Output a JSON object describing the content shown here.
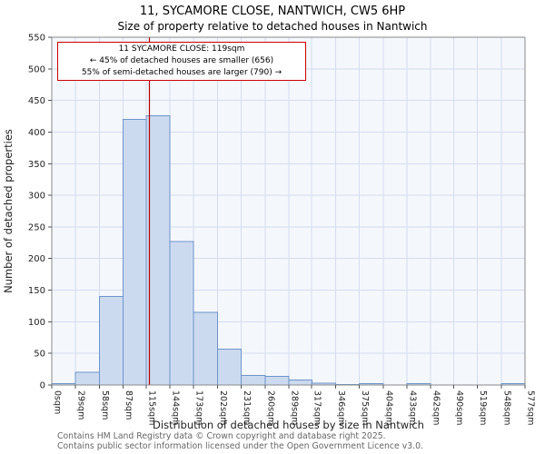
{
  "chart_data": {
    "type": "bar",
    "title": "11, SYCAMORE CLOSE, NANTWICH, CW5 6HP",
    "subtitle": "Size of property relative to detached houses in Nantwich",
    "xlabel": "Distribution of detached houses by size in Nantwich",
    "ylabel": "Number of detached properties",
    "ylim": [
      0,
      550
    ],
    "y_ticks": [
      0,
      50,
      100,
      150,
      200,
      250,
      300,
      350,
      400,
      450,
      500,
      550
    ],
    "bin_edges": [
      0,
      29,
      58,
      87,
      115,
      144,
      173,
      202,
      231,
      260,
      289,
      317,
      346,
      375,
      404,
      433,
      462,
      490,
      519,
      548,
      577
    ],
    "x_tick_labels": [
      "0sqm",
      "29sqm",
      "58sqm",
      "87sqm",
      "115sqm",
      "144sqm",
      "173sqm",
      "202sqm",
      "231sqm",
      "260sqm",
      "289sqm",
      "317sqm",
      "346sqm",
      "375sqm",
      "404sqm",
      "433sqm",
      "462sqm",
      "490sqm",
      "519sqm",
      "548sqm",
      "577sqm"
    ],
    "values": [
      2,
      20,
      140,
      420,
      426,
      227,
      115,
      57,
      15,
      14,
      8,
      3,
      1,
      2,
      0,
      2,
      0,
      0,
      0,
      2
    ],
    "grid": true,
    "legend": "none",
    "marker": {
      "x": 119
    },
    "annotation_lines": [
      "11 SYCAMORE CLOSE: 119sqm",
      "← 45% of detached houses are smaller (656)",
      "55% of semi-detached houses are larger (790) →"
    ],
    "colors": {
      "bar_fill": "#ccdaf0",
      "bar_stroke": "#6e94c9",
      "plot_bg": "#f4f7fc",
      "grid": "#d5ddee",
      "marker": "#b30000",
      "annotation_border": "#cc0000"
    }
  },
  "footer": {
    "line1": "Contains HM Land Registry data © Crown copyright and database right 2025.",
    "line2": "Contains public sector information licensed under the Open Government Licence v3.0."
  }
}
